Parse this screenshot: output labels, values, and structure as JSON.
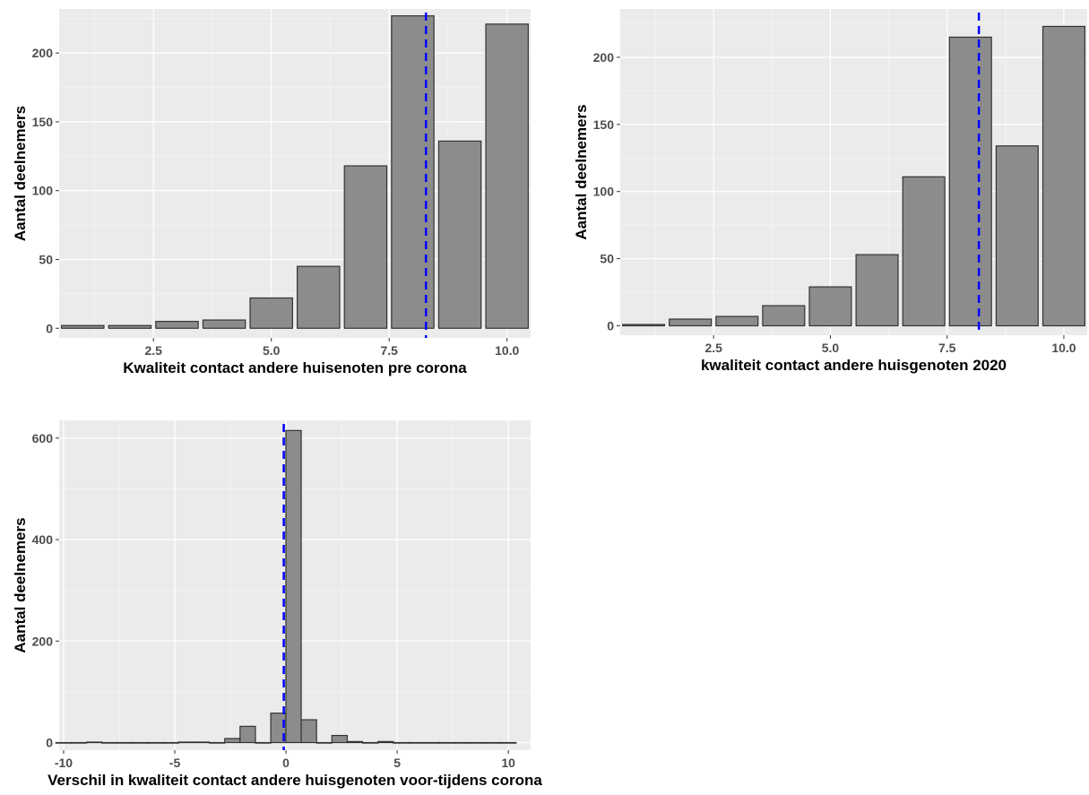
{
  "chart_data": [
    {
      "type": "bar",
      "xlabel": "Kwaliteit contact andere huisenoten pre corona",
      "ylabel": "Aantal deelnemers",
      "xlim": [
        0.5,
        10.5
      ],
      "ylim": [
        -7,
        232
      ],
      "x_ticks": [
        2.5,
        5.0,
        7.5,
        10.0
      ],
      "x_tick_labels": [
        "2.5",
        "5.0",
        "7.5",
        "10.0"
      ],
      "y_ticks": [
        0,
        50,
        100,
        150,
        200
      ],
      "y_tick_labels": [
        "0",
        "50",
        "100",
        "150",
        "200"
      ],
      "bar_width": 0.9,
      "x": [
        1,
        2,
        3,
        4,
        5,
        6,
        7,
        8,
        9,
        10
      ],
      "values": [
        2,
        2,
        5,
        6,
        22,
        45,
        118,
        227,
        136,
        221
      ],
      "mean_line": 8.28,
      "grid": true
    },
    {
      "type": "bar",
      "xlabel": "kwaliteit contact andere huisgenoten 2020",
      "ylabel": "Aantal deelnemers",
      "xlim": [
        0.5,
        10.5
      ],
      "ylim": [
        -7,
        236
      ],
      "x_ticks": [
        2.5,
        5.0,
        7.5,
        10.0
      ],
      "x_tick_labels": [
        "2.5",
        "5.0",
        "7.5",
        "10.0"
      ],
      "y_ticks": [
        0,
        50,
        100,
        150,
        200
      ],
      "y_tick_labels": [
        "0",
        "50",
        "100",
        "150",
        "200"
      ],
      "bar_width": 0.9,
      "x": [
        1,
        2,
        3,
        4,
        5,
        6,
        7,
        8,
        9,
        10
      ],
      "values": [
        1,
        5,
        7,
        15,
        29,
        53,
        111,
        215,
        134,
        223
      ],
      "mean_line": 8.18,
      "grid": true
    },
    {
      "type": "bar",
      "xlabel": "Verschil in kwaliteit contact andere huisgenoten voor-tijdens corona",
      "ylabel": "Aantal deelnemers",
      "xlim": [
        -10.2,
        11.0
      ],
      "ylim": [
        -15,
        635
      ],
      "x_ticks": [
        -10,
        -5,
        0,
        5,
        10
      ],
      "x_tick_labels": [
        "-10",
        "-5",
        "0",
        "5",
        "10"
      ],
      "y_ticks": [
        0,
        200,
        400,
        600
      ],
      "y_tick_labels": [
        "0",
        "200",
        "400",
        "600"
      ],
      "bar_width": 0.69,
      "x": [
        -10,
        -9.31,
        -8.62,
        -7.93,
        -7.24,
        -6.55,
        -5.86,
        -5.17,
        -4.48,
        -3.79,
        -3.1,
        -2.41,
        -1.72,
        -1.03,
        -0.34,
        0.34,
        1.03,
        1.72,
        2.41,
        3.1,
        3.79,
        4.48,
        5.17,
        5.86,
        6.55,
        7.24,
        7.93,
        8.62,
        9.31,
        10
      ],
      "values": [
        0,
        0,
        1,
        0,
        0,
        0,
        0,
        0,
        1,
        1,
        0,
        8,
        32,
        0,
        58,
        615,
        45,
        0,
        14,
        2,
        0,
        2,
        0,
        0,
        0,
        0,
        0,
        0,
        0,
        0
      ],
      "mean_line": -0.1,
      "grid": true
    }
  ],
  "colors": {
    "panel_background": "#ebebeb",
    "grid_major": "#ffffff",
    "grid_minor": "#f5f5f5",
    "bar_fill": "#8c8c8c",
    "bar_outline": "#333333",
    "mean_line": "#0000ff"
  }
}
